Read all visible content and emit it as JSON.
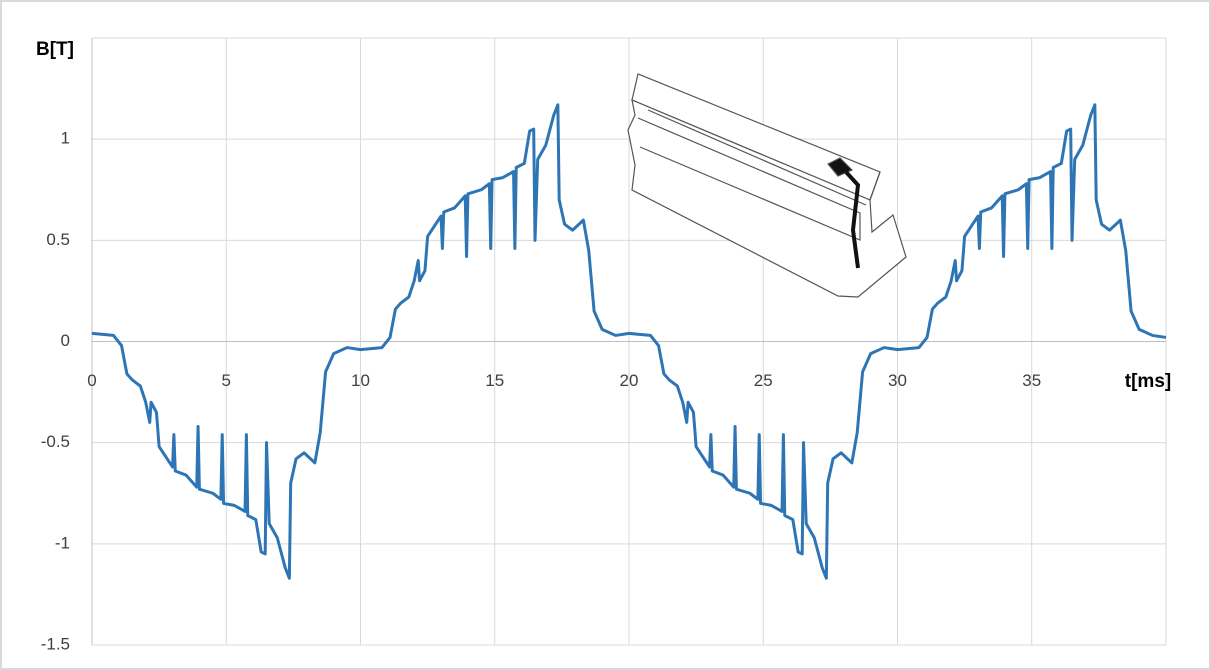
{
  "chart_data": {
    "type": "line",
    "y_label": "B[T]",
    "x_label": "t[ms]",
    "color": "#2e75b6",
    "grid": true,
    "xlim": [
      0,
      40
    ],
    "xticks": [
      0,
      5,
      10,
      15,
      20,
      25,
      30,
      35
    ],
    "ylim": [
      -1.5,
      1.5
    ],
    "yticks": [
      -1.5,
      -1,
      -0.5,
      0,
      0.5,
      1
    ],
    "x": [
      0,
      0.8,
      1.1,
      1.3,
      1.5,
      1.8,
      2.0,
      2.15,
      2.2,
      2.4,
      2.5,
      2.9,
      3.0,
      3.05,
      3.1,
      3.5,
      3.9,
      3.95,
      4.0,
      4.5,
      4.8,
      4.85,
      4.9,
      5.3,
      5.7,
      5.75,
      5.8,
      6.1,
      6.3,
      6.45,
      6.5,
      6.6,
      6.9,
      7.2,
      7.35,
      7.4,
      7.6,
      7.9,
      8.3,
      8.5,
      8.7,
      9.0,
      9.5,
      10,
      10.8,
      11.1,
      11.3,
      11.5,
      11.8,
      12.0,
      12.15,
      12.2,
      12.4,
      12.5,
      12.9,
      13.0,
      13.05,
      13.1,
      13.5,
      13.9,
      13.95,
      14.0,
      14.5,
      14.8,
      14.85,
      14.9,
      15.3,
      15.7,
      15.75,
      15.8,
      16.1,
      16.3,
      16.45,
      16.5,
      16.6,
      16.9,
      17.2,
      17.35,
      17.4,
      17.6,
      17.9,
      18.3,
      18.5,
      18.7,
      19.0,
      19.5,
      20,
      20.8,
      21.1,
      21.3,
      21.5,
      21.8,
      22.0,
      22.15,
      22.2,
      22.4,
      22.5,
      22.9,
      23.0,
      23.05,
      23.1,
      23.5,
      23.9,
      23.95,
      24.0,
      24.5,
      24.8,
      24.85,
      24.9,
      25.3,
      25.7,
      25.75,
      25.8,
      26.1,
      26.3,
      26.45,
      26.5,
      26.6,
      26.9,
      27.2,
      27.35,
      27.4,
      27.6,
      27.9,
      28.3,
      28.5,
      28.7,
      29.0,
      29.5,
      30,
      30.8,
      31.1,
      31.3,
      31.5,
      31.8,
      32.0,
      32.15,
      32.2,
      32.4,
      32.5,
      32.9,
      33.0,
      33.05,
      33.1,
      33.5,
      33.9,
      33.95,
      34.0,
      34.5,
      34.8,
      34.85,
      34.9,
      35.3,
      35.7,
      35.75,
      35.8,
      36.1,
      36.3,
      36.45,
      36.5,
      36.6,
      36.9,
      37.2,
      37.35,
      37.4,
      37.6,
      37.9,
      38.3,
      38.5,
      38.7,
      39.0,
      39.5,
      40
    ],
    "values": [
      0.04,
      0.03,
      -0.02,
      -0.16,
      -0.19,
      -0.22,
      -0.3,
      -0.4,
      -0.3,
      -0.35,
      -0.52,
      -0.6,
      -0.62,
      -0.46,
      -0.64,
      -0.66,
      -0.72,
      -0.42,
      -0.73,
      -0.75,
      -0.78,
      -0.46,
      -0.8,
      -0.81,
      -0.84,
      -0.46,
      -0.86,
      -0.88,
      -1.04,
      -1.05,
      -0.5,
      -0.9,
      -0.97,
      -1.12,
      -1.17,
      -0.7,
      -0.58,
      -0.55,
      -0.6,
      -0.45,
      -0.15,
      -0.06,
      -0.03,
      -0.04,
      -0.03,
      0.02,
      0.16,
      0.19,
      0.22,
      0.3,
      0.4,
      0.3,
      0.35,
      0.52,
      0.6,
      0.62,
      0.46,
      0.64,
      0.66,
      0.72,
      0.42,
      0.73,
      0.75,
      0.78,
      0.46,
      0.8,
      0.81,
      0.84,
      0.46,
      0.86,
      0.88,
      1.04,
      1.05,
      0.5,
      0.9,
      0.97,
      1.12,
      1.17,
      0.7,
      0.58,
      0.55,
      0.6,
      0.45,
      0.15,
      0.06,
      0.03,
      0.04,
      0.03,
      -0.02,
      -0.16,
      -0.19,
      -0.22,
      -0.3,
      -0.4,
      -0.3,
      -0.35,
      -0.52,
      -0.6,
      -0.62,
      -0.46,
      -0.64,
      -0.66,
      -0.72,
      -0.42,
      -0.73,
      -0.75,
      -0.78,
      -0.46,
      -0.8,
      -0.81,
      -0.84,
      -0.46,
      -0.86,
      -0.88,
      -1.04,
      -1.05,
      -0.5,
      -0.9,
      -0.97,
      -1.12,
      -1.17,
      -0.7,
      -0.58,
      -0.55,
      -0.6,
      -0.45,
      -0.15,
      -0.06,
      -0.03,
      -0.04,
      -0.03,
      0.02,
      0.16,
      0.19,
      0.22,
      0.3,
      0.4,
      0.3,
      0.35,
      0.52,
      0.6,
      0.62,
      0.46,
      0.64,
      0.66,
      0.72,
      0.42,
      0.73,
      0.75,
      0.78,
      0.46,
      0.8,
      0.81,
      0.84,
      0.46,
      0.86,
      0.88,
      1.04,
      1.05,
      0.5,
      0.9,
      0.97,
      1.12,
      1.17,
      0.7,
      0.58,
      0.55,
      0.6,
      0.45,
      0.15,
      0.06,
      0.03,
      0.02
    ]
  }
}
